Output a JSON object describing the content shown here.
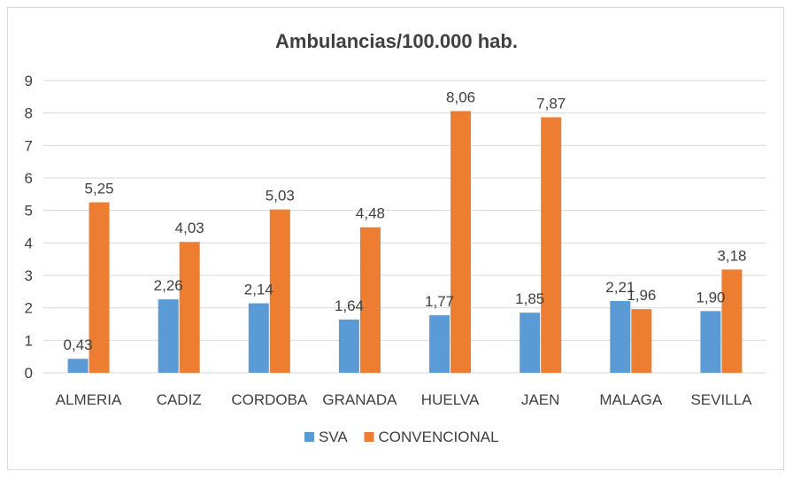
{
  "chart_data": {
    "type": "bar",
    "title": "Ambulancias/100.000 hab.",
    "categories": [
      "ALMERIA",
      "CADIZ",
      "CORDOBA",
      "GRANADA",
      "HUELVA",
      "JAEN",
      "MALAGA",
      "SEVILLA"
    ],
    "series": [
      {
        "name": "SVA",
        "color": "#5b9bd5",
        "values": [
          0.43,
          2.26,
          2.14,
          1.64,
          1.77,
          1.85,
          2.21,
          1.9
        ],
        "labels": [
          "0,43",
          "2,26",
          "2,14",
          "1,64",
          "1,77",
          "1,85",
          "2,21",
          "1,90"
        ]
      },
      {
        "name": "CONVENCIONAL",
        "color": "#ed7d31",
        "values": [
          5.25,
          4.03,
          5.03,
          4.48,
          8.06,
          7.87,
          1.96,
          3.18
        ],
        "labels": [
          "5,25",
          "4,03",
          "5,03",
          "4,48",
          "8,06",
          "7,87",
          "1,96",
          "3,18"
        ]
      }
    ],
    "ylim": [
      0,
      9
    ],
    "yticks": [
      "0",
      "1",
      "2",
      "3",
      "4",
      "5",
      "6",
      "7",
      "8",
      "9"
    ],
    "grid": true,
    "legend": "bottom"
  }
}
